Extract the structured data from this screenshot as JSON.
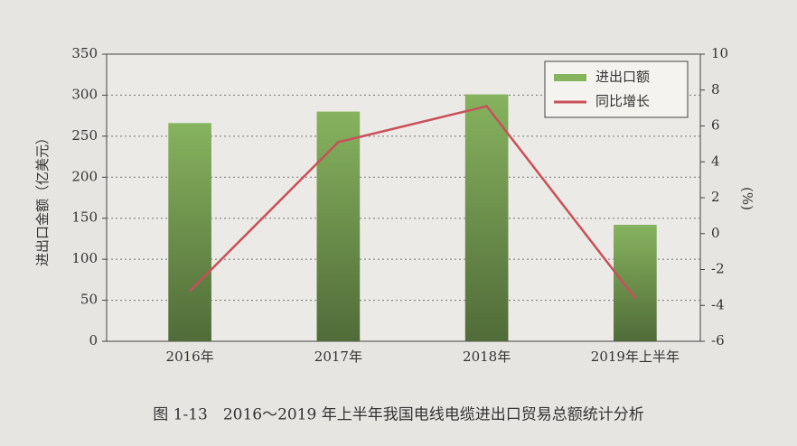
{
  "chart_data": {
    "type": "bar",
    "title": "图 1-13　2016～2019 年上半年我国电线电缆进出口贸易总额统计分析",
    "y_label": "进出口金额（亿美元）",
    "y2_label": "(%)",
    "categories": [
      "2016年",
      "2017年",
      "2018年",
      "2019年上半年"
    ],
    "series": [
      {
        "name": "进出口额",
        "type": "bar",
        "color": "#86b35e",
        "values": [
          266,
          280,
          301,
          142
        ]
      },
      {
        "name": "同比增长",
        "type": "line",
        "axis": "y2",
        "color": "#c8505a",
        "values": [
          -3.2,
          5.1,
          7.1,
          -3.6
        ]
      }
    ],
    "ylim": [
      0,
      350
    ],
    "yticks": [
      0,
      50,
      100,
      150,
      200,
      250,
      300,
      350
    ],
    "y2lim": [
      -6,
      10
    ],
    "y2ticks": [
      -6,
      -4,
      -2,
      0,
      2,
      4,
      6,
      8,
      10
    ],
    "grid": true,
    "legend": "top-right"
  }
}
